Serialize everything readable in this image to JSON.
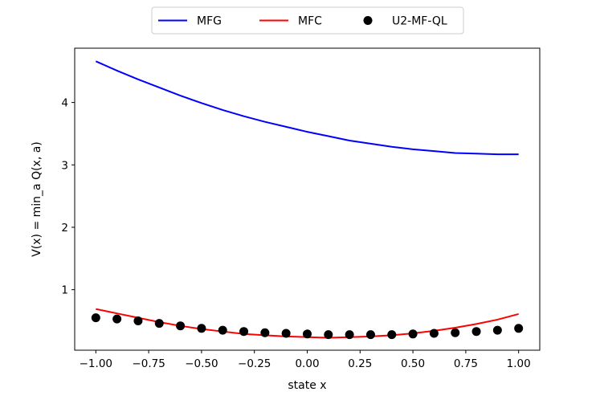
{
  "chart_data": {
    "type": "line",
    "xlabel": "state x",
    "ylabel": "V(x) = min_a Q(x, a)",
    "xlim": [
      -1.1,
      1.1
    ],
    "ylim": [
      0.03,
      4.87
    ],
    "xticks": [
      -1.0,
      -0.75,
      -0.5,
      -0.25,
      0.0,
      0.25,
      0.5,
      0.75,
      1.0
    ],
    "xtick_labels": [
      "−1.00",
      "−0.75",
      "−0.50",
      "−0.25",
      "0.00",
      "0.25",
      "0.50",
      "0.75",
      "1.00"
    ],
    "yticks": [
      1,
      2,
      3,
      4
    ],
    "ytick_labels": [
      "1",
      "2",
      "3",
      "4"
    ],
    "grid": false,
    "legend_position": "top-center-outside",
    "series": [
      {
        "name": "MFG",
        "style": "line",
        "color": "#0000ff",
        "x": [
          -1.0,
          -0.9,
          -0.8,
          -0.7,
          -0.6,
          -0.5,
          -0.4,
          -0.3,
          -0.2,
          -0.1,
          0.0,
          0.1,
          0.2,
          0.3,
          0.4,
          0.5,
          0.6,
          0.7,
          0.8,
          0.9,
          1.0
        ],
        "y": [
          4.66,
          4.51,
          4.37,
          4.24,
          4.11,
          3.99,
          3.88,
          3.78,
          3.69,
          3.61,
          3.53,
          3.46,
          3.39,
          3.34,
          3.29,
          3.25,
          3.22,
          3.19,
          3.18,
          3.17,
          3.17
        ]
      },
      {
        "name": "MFC",
        "style": "line",
        "color": "#ff0000",
        "x": [
          -1.0,
          -0.9,
          -0.8,
          -0.7,
          -0.6,
          -0.5,
          -0.4,
          -0.3,
          -0.2,
          -0.1,
          0.0,
          0.1,
          0.2,
          0.3,
          0.4,
          0.5,
          0.6,
          0.7,
          0.8,
          0.9,
          1.0
        ],
        "y": [
          0.69,
          0.62,
          0.55,
          0.48,
          0.42,
          0.37,
          0.33,
          0.29,
          0.27,
          0.25,
          0.24,
          0.23,
          0.24,
          0.25,
          0.27,
          0.3,
          0.34,
          0.39,
          0.45,
          0.52,
          0.61
        ]
      },
      {
        "name": "U2-MF-QL",
        "style": "scatter",
        "color": "#000000",
        "x": [
          -1.0,
          -0.9,
          -0.8,
          -0.7,
          -0.6,
          -0.5,
          -0.4,
          -0.3,
          -0.2,
          -0.1,
          0.0,
          0.1,
          0.2,
          0.3,
          0.4,
          0.5,
          0.6,
          0.7,
          0.8,
          0.9,
          1.0
        ],
        "y": [
          0.55,
          0.53,
          0.5,
          0.46,
          0.42,
          0.38,
          0.35,
          0.33,
          0.31,
          0.3,
          0.29,
          0.28,
          0.28,
          0.28,
          0.28,
          0.29,
          0.3,
          0.31,
          0.33,
          0.35,
          0.38
        ]
      }
    ]
  }
}
